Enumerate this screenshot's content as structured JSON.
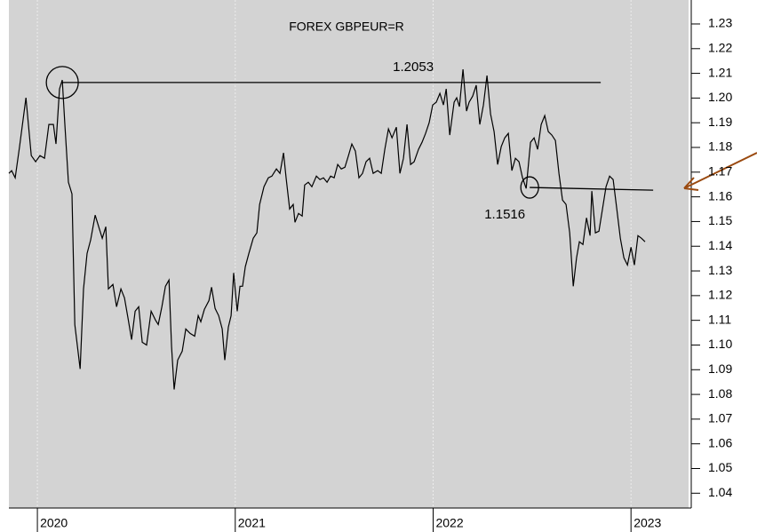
{
  "chart_data": {
    "type": "line",
    "title": "FOREX GBPEUR=R",
    "color": "#000000",
    "x": [
      2019.856,
      2019.87,
      2019.888,
      2019.91,
      2019.942,
      2019.969,
      2019.991,
      2020.013,
      2020.036,
      2020.058,
      2020.081,
      2020.094,
      2020.112,
      2020.126,
      2020.139,
      2020.157,
      2020.175,
      2020.189,
      2020.216,
      2020.233,
      2020.251,
      2020.269,
      2020.292,
      2020.314,
      2020.328,
      2020.346,
      2020.359,
      2020.382,
      2020.4,
      2020.422,
      2020.44,
      2020.458,
      2020.476,
      2020.494,
      2020.512,
      2020.53,
      2020.552,
      2020.575,
      2020.597,
      2020.611,
      2020.629,
      2020.647,
      2020.665,
      2020.678,
      2020.691,
      2020.709,
      2020.732,
      2020.75,
      2020.772,
      2020.795,
      2020.813,
      2020.826,
      2020.844,
      2020.867,
      2020.88,
      2020.898,
      2020.916,
      2020.934,
      2020.947,
      2020.965,
      2020.979,
      2020.992,
      2021.01,
      2021.024,
      2021.037,
      2021.051,
      2021.069,
      2021.091,
      2021.109,
      2021.123,
      2021.145,
      2021.167,
      2021.185,
      2021.208,
      2021.226,
      2021.244,
      2021.257,
      2021.275,
      2021.293,
      2021.302,
      2021.32,
      2021.338,
      2021.351,
      2021.369,
      2021.387,
      2021.41,
      2021.428,
      2021.446,
      2021.464,
      2021.482,
      2021.5,
      2021.518,
      2021.536,
      2021.554,
      2021.572,
      2021.589,
      2021.607,
      2021.625,
      2021.643,
      2021.661,
      2021.679,
      2021.697,
      2021.72,
      2021.738,
      2021.756,
      2021.774,
      2021.792,
      2021.814,
      2021.832,
      2021.85,
      2021.868,
      2021.886,
      2021.904,
      2021.926,
      2021.944,
      2021.962,
      2021.98,
      2021.998,
      2022.016,
      2022.034,
      2022.052,
      2022.066,
      2022.084,
      2022.106,
      2022.119,
      2022.133,
      2022.151,
      2022.169,
      2022.182,
      2022.2,
      2022.218,
      2022.236,
      2022.254,
      2022.272,
      2022.29,
      2022.308,
      2022.326,
      2022.344,
      2022.362,
      2022.38,
      2022.398,
      2022.416,
      2022.434,
      2022.452,
      2022.47,
      2022.492,
      2022.51,
      2022.528,
      2022.546,
      2022.564,
      2022.582,
      2022.6,
      2022.618,
      2022.636,
      2022.654,
      2022.672,
      2022.69,
      2022.708,
      2022.725,
      2022.739,
      2022.757,
      2022.775,
      2022.793,
      2022.802,
      2022.82,
      2022.838,
      2022.856,
      2022.874,
      2022.892,
      2022.91,
      2022.928,
      2022.946,
      2022.964,
      2022.982,
      2023.0,
      2023.017,
      2023.035,
      2023.053,
      2023.071
    ],
    "values": [
      1.1695,
      1.1706,
      1.1677,
      1.1803,
      1.2001,
      1.1767,
      1.1742,
      1.1767,
      1.1756,
      1.1893,
      1.1893,
      1.1814,
      1.2037,
      1.2073,
      1.1893,
      1.1659,
      1.1612,
      1.1083,
      1.0903,
      1.1227,
      1.1371,
      1.1425,
      1.1526,
      1.1468,
      1.1432,
      1.1479,
      1.1227,
      1.1245,
      1.1155,
      1.1227,
      1.1191,
      1.1108,
      1.1022,
      1.1137,
      1.1155,
      1.1011,
      1.1,
      1.1137,
      1.1101,
      1.1083,
      1.1155,
      1.1238,
      1.1263,
      1.0993,
      1.082,
      1.0939,
      1.0975,
      1.1065,
      1.1047,
      1.1036,
      1.1119,
      1.1094,
      1.1144,
      1.118,
      1.1234,
      1.1148,
      1.1119,
      1.1065,
      1.0939,
      1.1072,
      1.1119,
      1.1292,
      1.1137,
      1.1238,
      1.1238,
      1.1317,
      1.1371,
      1.1432,
      1.1454,
      1.1569,
      1.1641,
      1.1677,
      1.1684,
      1.1713,
      1.1695,
      1.1778,
      1.1677,
      1.1551,
      1.1569,
      1.1497,
      1.1533,
      1.1522,
      1.1648,
      1.1659,
      1.1641,
      1.1684,
      1.167,
      1.1677,
      1.1659,
      1.1684,
      1.1677,
      1.1731,
      1.1713,
      1.172,
      1.1767,
      1.1814,
      1.1785,
      1.1677,
      1.1695,
      1.1742,
      1.1756,
      1.1695,
      1.1706,
      1.1695,
      1.1792,
      1.1875,
      1.1839,
      1.1882,
      1.1695,
      1.1756,
      1.1893,
      1.1731,
      1.1742,
      1.1792,
      1.1821,
      1.1857,
      1.19,
      1.1972,
      1.1983,
      1.2019,
      1.1972,
      1.2037,
      1.185,
      1.1983,
      1.2001,
      1.1965,
      1.2116,
      1.1947,
      1.1983,
      1.2008,
      1.2052,
      1.1893,
      1.1972,
      1.2091,
      1.1936,
      1.1864,
      1.1731,
      1.1803,
      1.1839,
      1.1857,
      1.1706,
      1.1756,
      1.1742,
      1.1677,
      1.1634,
      1.1821,
      1.1839,
      1.1792,
      1.1893,
      1.1929,
      1.1864,
      1.185,
      1.1828,
      1.1695,
      1.1587,
      1.1569,
      1.1454,
      1.1238,
      1.1353,
      1.1418,
      1.1407,
      1.1515,
      1.1443,
      1.1623,
      1.1454,
      1.1461,
      1.1551,
      1.1641,
      1.1684,
      1.167,
      1.1551,
      1.1432,
      1.1353,
      1.1324,
      1.1396,
      1.1324,
      1.1443,
      1.1432,
      1.1418
    ],
    "xlim": [
      2019.856,
      2023.291
    ],
    "xticks": [
      2020,
      2021,
      2022,
      2023
    ],
    "ylim": [
      1.034,
      1.2397
    ],
    "yticks": [
      1.04,
      1.05,
      1.06,
      1.07,
      1.08,
      1.09,
      {
        "value": 1.1,
        "label": "1.10"
      },
      1.11,
      1.12,
      1.13,
      1.14,
      1.15,
      1.16,
      1.17,
      1.18,
      1.19,
      {
        "value": 1.2,
        "label": "1.20"
      },
      1.21,
      1.22,
      1.23
    ],
    "annotations": [
      {
        "label": 1.2053,
        "x": [
          2020.126,
          2022.847
        ],
        "y": [
          1.2063,
          1.2063
        ]
      },
      {
        "label": 1.1516,
        "x": [
          2022.488,
          2023.112
        ],
        "y": [
          1.1638,
          1.1627
        ]
      }
    ]
  }
}
